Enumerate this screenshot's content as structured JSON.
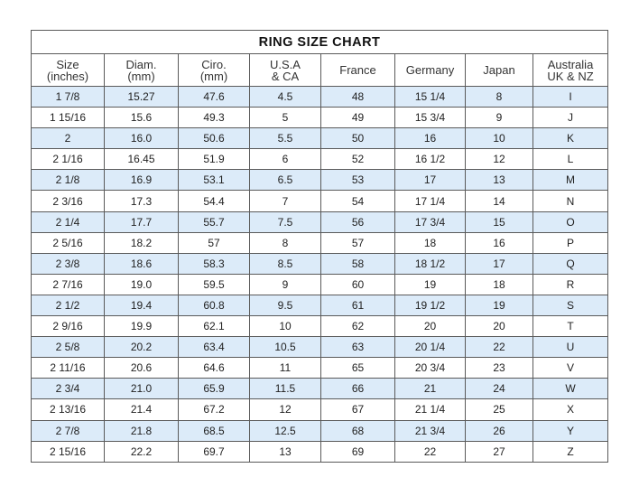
{
  "title": "RING SIZE CHART",
  "colors": {
    "stripe": "#dcebf9",
    "border": "#5a5a5a"
  },
  "columns": [
    [
      "Size",
      "(inches)"
    ],
    [
      "Diam.",
      "(mm)"
    ],
    [
      "Ciro.",
      "(mm)"
    ],
    [
      "U.S.A",
      "& CA"
    ],
    [
      "France",
      ""
    ],
    [
      "Germany",
      ""
    ],
    [
      "Japan",
      ""
    ],
    [
      "Australia",
      "UK & NZ"
    ]
  ],
  "rows": [
    [
      "1 7/8",
      "15.27",
      "47.6",
      "4.5",
      "48",
      "15 1/4",
      "8",
      "I"
    ],
    [
      "1 15/16",
      "15.6",
      "49.3",
      "5",
      "49",
      "15 3/4",
      "9",
      "J"
    ],
    [
      "2",
      "16.0",
      "50.6",
      "5.5",
      "50",
      "16",
      "10",
      "K"
    ],
    [
      "2 1/16",
      "16.45",
      "51.9",
      "6",
      "52",
      "16 1/2",
      "12",
      "L"
    ],
    [
      "2 1/8",
      "16.9",
      "53.1",
      "6.5",
      "53",
      "17",
      "13",
      "M"
    ],
    [
      "2 3/16",
      "17.3",
      "54.4",
      "7",
      "54",
      "17 1/4",
      "14",
      "N"
    ],
    [
      "2 1/4",
      "17.7",
      "55.7",
      "7.5",
      "56",
      "17 3/4",
      "15",
      "O"
    ],
    [
      "2 5/16",
      "18.2",
      "57",
      "8",
      "57",
      "18",
      "16",
      "P"
    ],
    [
      "2 3/8",
      "18.6",
      "58.3",
      "8.5",
      "58",
      "18 1/2",
      "17",
      "Q"
    ],
    [
      "2 7/16",
      "19.0",
      "59.5",
      "9",
      "60",
      "19",
      "18",
      "R"
    ],
    [
      "2 1/2",
      "19.4",
      "60.8",
      "9.5",
      "61",
      "19 1/2",
      "19",
      "S"
    ],
    [
      "2 9/16",
      "19.9",
      "62.1",
      "10",
      "62",
      "20",
      "20",
      "T"
    ],
    [
      "2 5/8",
      "20.2",
      "63.4",
      "10.5",
      "63",
      "20 1/4",
      "22",
      "U"
    ],
    [
      "2 11/16",
      "20.6",
      "64.6",
      "11",
      "65",
      "20 3/4",
      "23",
      "V"
    ],
    [
      "2 3/4",
      "21.0",
      "65.9",
      "11.5",
      "66",
      "21",
      "24",
      "W"
    ],
    [
      "2 13/16",
      "21.4",
      "67.2",
      "12",
      "67",
      "21 1/4",
      "25",
      "X"
    ],
    [
      "2 7/8",
      "21.8",
      "68.5",
      "12.5",
      "68",
      "21 3/4",
      "26",
      "Y"
    ],
    [
      "2 15/16",
      "22.2",
      "69.7",
      "13",
      "69",
      "22",
      "27",
      "Z"
    ]
  ]
}
